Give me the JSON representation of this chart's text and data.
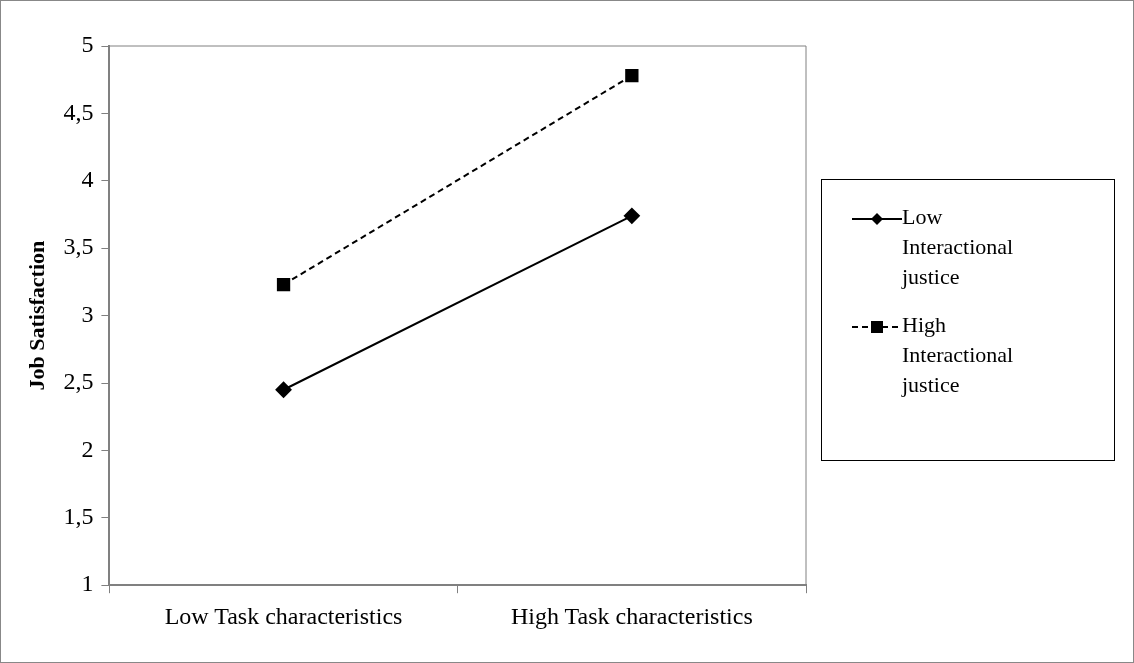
{
  "chart_data": {
    "type": "line",
    "ylabel": "Job Satisfaction",
    "categories": [
      "Low Task characteristics",
      "High Task characteristics"
    ],
    "series": [
      {
        "name": "Low Interactional justice",
        "color": "#000000",
        "values": [
          2.45,
          3.74
        ],
        "marker": "diamond",
        "line_style": "solid"
      },
      {
        "name": "High Interactional justice",
        "color": "#000000",
        "values": [
          3.23,
          4.78
        ],
        "marker": "square",
        "line_style": "dashed"
      }
    ],
    "ylim": [
      1,
      5
    ],
    "yticks": [
      1,
      {
        "value": 1.5,
        "label": "1,5"
      },
      2,
      {
        "value": 2.5,
        "label": "2,5"
      },
      3,
      {
        "value": 3.5,
        "label": "3,5"
      },
      4,
      {
        "value": 4.5,
        "label": "4,5"
      },
      5
    ],
    "grid": false,
    "legend": "right"
  }
}
